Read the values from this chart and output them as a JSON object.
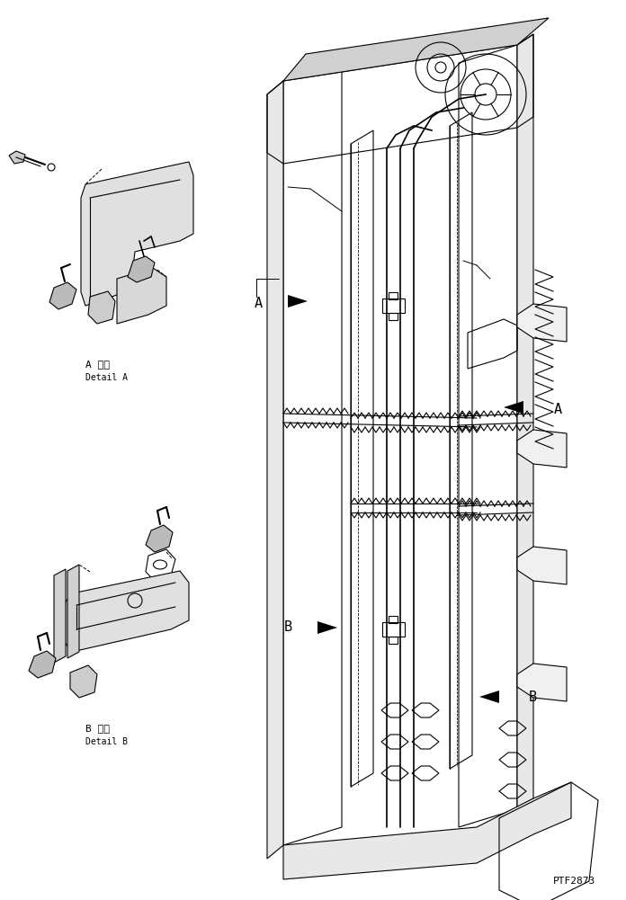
{
  "background_color": "#ffffff",
  "line_color": "#000000",
  "text_color": "#000000",
  "part_number": "PTF2873",
  "label_a_jp": "A 詳細",
  "label_a_en": "Detail A",
  "label_b_jp": "B 詳細",
  "label_b_en": "Detail B",
  "arrow_a_label": "A",
  "arrow_b_label": "B",
  "fig_width": 6.96,
  "fig_height": 10.01,
  "dpi": 100
}
